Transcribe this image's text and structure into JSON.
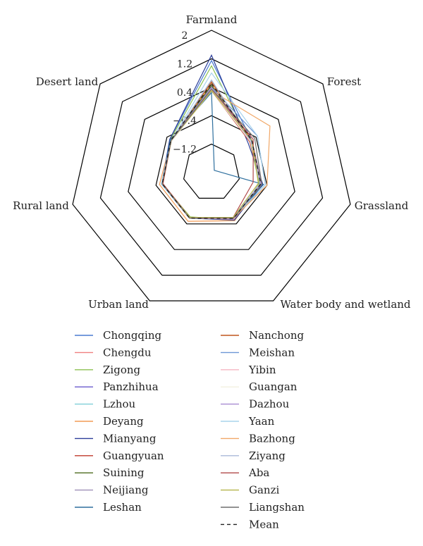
{
  "chart_data": {
    "type": "radar",
    "axes": [
      "Farmland",
      "Forest",
      "Grassland",
      "Water body and wetland",
      "Urban land",
      "Rural land",
      "Desert land"
    ],
    "range": [
      -2,
      2
    ],
    "ticks": [
      -1.2,
      -0.4,
      0.4,
      1.2,
      2
    ],
    "tick_labels": [
      "−1.2",
      "−0.4",
      "0.4",
      "1.2",
      "2"
    ],
    "legend_position": "bottom",
    "series": [
      {
        "name": "Chongqing",
        "color": "#4a7bd1",
        "values": [
          1.15,
          -0.55,
          -0.58,
          -0.57,
          -0.58,
          -0.56,
          -0.5
        ]
      },
      {
        "name": "Chengdu",
        "color": "#ef7f7f",
        "values": [
          0.6,
          -0.6,
          -0.62,
          -0.55,
          -0.6,
          -0.58,
          -0.55
        ]
      },
      {
        "name": "Zigong",
        "color": "#8cc152",
        "values": [
          1.0,
          -0.62,
          -0.62,
          -0.53,
          -0.62,
          -0.58,
          -0.52
        ]
      },
      {
        "name": "Panzhihua",
        "color": "#6a5acd",
        "values": [
          0.3,
          -0.55,
          -0.55,
          -0.58,
          -0.58,
          -0.58,
          -0.55
        ]
      },
      {
        "name": "Lzhou",
        "color": "#7fcfd8",
        "values": [
          0.6,
          -0.58,
          -0.6,
          -0.52,
          -0.58,
          -0.6,
          -0.55
        ]
      },
      {
        "name": "Deyang",
        "color": "#f29b55",
        "values": [
          0.5,
          -0.62,
          -0.6,
          -0.5,
          -0.48,
          -0.5,
          -0.55
        ]
      },
      {
        "name": "Mianyang",
        "color": "#2c3e99",
        "values": [
          1.3,
          -0.68,
          -0.52,
          -0.52,
          -0.58,
          -0.58,
          -0.5
        ]
      },
      {
        "name": "Guangyuan",
        "color": "#c0392b",
        "values": [
          0.3,
          -0.62,
          -0.55,
          -0.55,
          -0.58,
          -0.58,
          -0.55
        ]
      },
      {
        "name": "Suining",
        "color": "#4d6b1e",
        "values": [
          0.45,
          -0.6,
          -0.6,
          -0.55,
          -0.6,
          -0.58,
          -0.55
        ]
      },
      {
        "name": "Neijiang",
        "color": "#9e8fb8",
        "values": [
          0.3,
          -0.55,
          -0.55,
          -0.6,
          -0.6,
          -0.58,
          -0.55
        ]
      },
      {
        "name": "Leshan",
        "color": "#2e6f9e",
        "values": [
          0.25,
          -1.9,
          -0.5,
          -0.6,
          -0.58,
          -0.58,
          -0.52
        ]
      },
      {
        "name": "Nanchong",
        "color": "#c0561d",
        "values": [
          0.55,
          -0.55,
          -0.58,
          -0.55,
          -0.6,
          -0.58,
          -0.55
        ]
      },
      {
        "name": "Meishan",
        "color": "#6c96d6",
        "values": [
          0.4,
          -0.35,
          -0.45,
          -0.58,
          -0.58,
          -0.58,
          -0.55
        ]
      },
      {
        "name": "Yibin",
        "color": "#f4b6c2",
        "values": [
          0.35,
          -0.6,
          -0.58,
          -0.55,
          -0.58,
          -0.58,
          -0.55
        ]
      },
      {
        "name": "Guangan",
        "color": "#f3f0e0",
        "values": [
          0.3,
          -0.6,
          -0.6,
          -0.6,
          -0.6,
          -0.6,
          -0.58
        ]
      },
      {
        "name": "Dazhou",
        "color": "#a78bd1",
        "values": [
          0.4,
          -0.58,
          -0.58,
          -0.58,
          -0.6,
          -0.6,
          -0.55
        ]
      },
      {
        "name": "Yaan",
        "color": "#a9d3ec",
        "values": [
          0.8,
          -0.35,
          -0.45,
          -0.6,
          -0.6,
          -0.55,
          -0.55
        ]
      },
      {
        "name": "Bazhong",
        "color": "#f1a868",
        "values": [
          0.3,
          0.1,
          -0.4,
          -0.58,
          -0.58,
          -0.6,
          -0.55
        ]
      },
      {
        "name": "Ziyang",
        "color": "#a9b8d8",
        "values": [
          0.6,
          -0.58,
          -0.6,
          -0.6,
          -0.6,
          -0.58,
          -0.55
        ]
      },
      {
        "name": "Aba",
        "color": "#b24a4a",
        "values": [
          0.35,
          -0.5,
          -0.8,
          -0.6,
          -0.6,
          -0.6,
          -0.55
        ]
      },
      {
        "name": "Ganzi",
        "color": "#b5b54a",
        "values": [
          0.3,
          -0.55,
          -0.65,
          -0.6,
          -0.6,
          -0.58,
          -0.55
        ]
      },
      {
        "name": "Liangshan",
        "color": "#6e6e6e",
        "values": [
          0.35,
          -0.45,
          -0.55,
          -0.58,
          -0.58,
          -0.58,
          -0.55
        ]
      },
      {
        "name": "Mean",
        "color": "#222222",
        "dashed": true,
        "values": [
          0.5,
          -0.55,
          -0.58,
          -0.57,
          -0.58,
          -0.58,
          -0.54
        ]
      }
    ]
  }
}
